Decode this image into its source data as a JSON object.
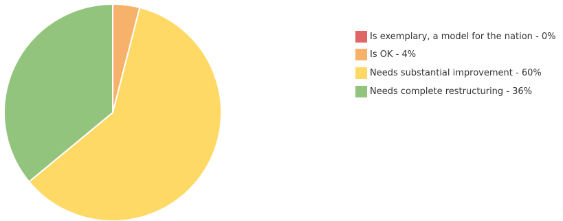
{
  "chart_data": {
    "type": "pie",
    "slices": [
      {
        "label": "Is exemplary, a model for the nation - 0%",
        "value": 0,
        "color": "#e06666"
      },
      {
        "label": "Is OK - 4%",
        "value": 4,
        "color": "#f6b26b"
      },
      {
        "label": "Needs substantial improvement - 60%",
        "value": 60,
        "color": "#ffd966"
      },
      {
        "label": "Needs complete restructuring - 36%",
        "value": 36,
        "color": "#93c47d"
      }
    ],
    "start_angle_deg": 0,
    "direction": "clockwise",
    "slice_border_color": "#ffffff",
    "legend_position": "right"
  }
}
